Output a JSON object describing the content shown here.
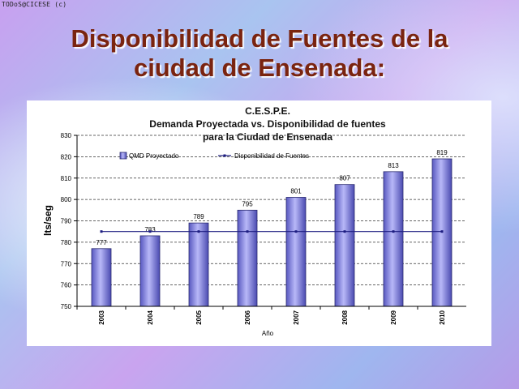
{
  "watermark": "TODoS@CICESE (c)",
  "slide": {
    "title_line1": "Disponibilidad de Fuentes de la",
    "title_line2": "ciudad de Ensenada:"
  },
  "colors": {
    "title": "#7a2410",
    "bar_fill": "#8080e0",
    "line": "#1c1c80"
  },
  "chart_data": {
    "type": "bar",
    "title_lines": [
      "C.E.S.P.E.",
      "Demanda Proyectada vs. Disponibilidad de fuentes",
      "para la Ciudad de Ensenada"
    ],
    "xlabel": "Año",
    "ylabel": "lts/seg",
    "ylim": [
      750,
      830
    ],
    "yticks": [
      750,
      760,
      770,
      780,
      790,
      800,
      810,
      820,
      830
    ],
    "grid": true,
    "legend_position": "top",
    "categories": [
      "2003",
      "2004",
      "2005",
      "2006",
      "2007",
      "2008",
      "2009",
      "2010"
    ],
    "series": [
      {
        "name": "QMD Proyectado",
        "kind": "bar",
        "values": [
          777,
          783,
          789,
          795,
          801,
          807,
          813,
          819
        ],
        "data_labels": [
          "777",
          "783",
          "789",
          "795",
          "801",
          "807",
          "813",
          "819"
        ]
      },
      {
        "name": "Disponibilidad de Fuentes",
        "kind": "line",
        "values": [
          785,
          785,
          785,
          785,
          785,
          785,
          785,
          785
        ]
      }
    ]
  }
}
